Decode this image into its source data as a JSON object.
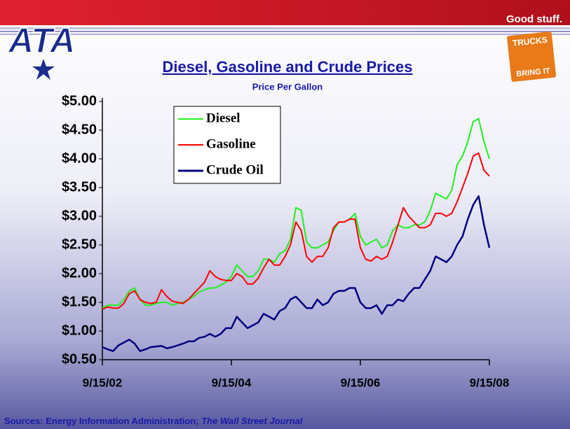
{
  "branding": {
    "logo": "ATA",
    "tagline": "Good stuff.",
    "badge": [
      "TRUCKS",
      "BRING IT"
    ]
  },
  "chart_data": {
    "type": "line",
    "title": "Diesel, Gasoline and Crude Prices",
    "subtitle": "Price Per Gallon",
    "source": [
      "Sources: Energy Information Administration; ",
      "The Wall Street Journal"
    ],
    "categories": [
      "9/15/02",
      null,
      null,
      null,
      null,
      null,
      null,
      null,
      null,
      null,
      null,
      null,
      null,
      null,
      null,
      null,
      null,
      null,
      null,
      null,
      null,
      null,
      null,
      null,
      "9/15/04",
      null,
      null,
      null,
      null,
      null,
      null,
      null,
      null,
      null,
      null,
      null,
      null,
      null,
      null,
      null,
      null,
      null,
      null,
      null,
      null,
      null,
      null,
      null,
      "9/15/06",
      null,
      null,
      null,
      null,
      null,
      null,
      null,
      null,
      null,
      null,
      null,
      null,
      null,
      null,
      null,
      null,
      null,
      null,
      null,
      null,
      null,
      null,
      null,
      "9/15/08"
    ],
    "xticks": [
      "9/15/02",
      "9/15/04",
      "9/15/06",
      "9/15/08"
    ],
    "ylim": [
      0.5,
      5
    ],
    "yticks": [
      {
        "value": 0.5,
        "label": "$0.50"
      },
      {
        "value": 1,
        "label": "$1.00"
      },
      {
        "value": 1.5,
        "label": "$1.50"
      },
      {
        "value": 2,
        "label": "$2.00"
      },
      {
        "value": 2.5,
        "label": "$2.50"
      },
      {
        "value": 3,
        "label": "$3.00"
      },
      {
        "value": 3.5,
        "label": "$3.50"
      },
      {
        "value": 4,
        "label": "$4.00"
      },
      {
        "value": 4.5,
        "label": "$4.50"
      },
      {
        "value": 5,
        "label": "$5.00"
      }
    ],
    "grid": false,
    "legend": "top-left",
    "series": [
      {
        "name": "Diesel",
        "color": "#22ee22",
        "values": [
          1.4,
          1.45,
          1.45,
          1.45,
          1.55,
          1.7,
          1.75,
          1.55,
          1.45,
          1.45,
          1.48,
          1.5,
          1.5,
          1.45,
          1.48,
          1.5,
          1.55,
          1.6,
          1.68,
          1.72,
          1.75,
          1.75,
          1.8,
          1.85,
          1.95,
          2.15,
          2.05,
          1.95,
          1.95,
          2.05,
          2.25,
          2.25,
          2.2,
          2.35,
          2.4,
          2.6,
          3.15,
          3.1,
          2.55,
          2.45,
          2.45,
          2.5,
          2.55,
          2.75,
          2.9,
          2.9,
          2.95,
          3.05,
          2.65,
          2.5,
          2.55,
          2.6,
          2.45,
          2.5,
          2.75,
          2.85,
          2.8,
          2.8,
          2.85,
          2.85,
          2.9,
          3.1,
          3.4,
          3.35,
          3.3,
          3.45,
          3.9,
          4.05,
          4.3,
          4.65,
          4.7,
          4.3,
          4.0
        ]
      },
      {
        "name": "Gasoline",
        "color": "#ff0000",
        "values": [
          1.38,
          1.42,
          1.4,
          1.4,
          1.48,
          1.65,
          1.7,
          1.55,
          1.5,
          1.48,
          1.5,
          1.72,
          1.6,
          1.52,
          1.5,
          1.48,
          1.55,
          1.65,
          1.75,
          1.85,
          2.05,
          1.95,
          1.9,
          1.88,
          1.88,
          2.0,
          1.95,
          1.82,
          1.82,
          1.92,
          2.1,
          2.25,
          2.15,
          2.15,
          2.3,
          2.5,
          2.9,
          2.75,
          2.3,
          2.2,
          2.3,
          2.3,
          2.45,
          2.8,
          2.9,
          2.9,
          2.95,
          2.95,
          2.45,
          2.25,
          2.22,
          2.3,
          2.25,
          2.3,
          2.55,
          2.85,
          3.15,
          3.0,
          2.9,
          2.8,
          2.8,
          2.85,
          3.05,
          3.05,
          3.0,
          3.05,
          3.25,
          3.5,
          3.75,
          4.05,
          4.1,
          3.8,
          3.7
        ]
      },
      {
        "name": "Crude Oil",
        "color": "#000080",
        "values": [
          0.72,
          0.68,
          0.65,
          0.75,
          0.8,
          0.85,
          0.78,
          0.65,
          0.68,
          0.72,
          0.73,
          0.74,
          0.7,
          0.72,
          0.75,
          0.78,
          0.82,
          0.82,
          0.88,
          0.9,
          0.95,
          0.9,
          0.95,
          1.05,
          1.05,
          1.25,
          1.15,
          1.05,
          1.1,
          1.15,
          1.3,
          1.25,
          1.2,
          1.35,
          1.4,
          1.55,
          1.6,
          1.5,
          1.4,
          1.4,
          1.55,
          1.45,
          1.5,
          1.65,
          1.7,
          1.7,
          1.75,
          1.75,
          1.5,
          1.4,
          1.4,
          1.45,
          1.3,
          1.45,
          1.45,
          1.55,
          1.52,
          1.65,
          1.75,
          1.75,
          1.9,
          2.05,
          2.3,
          2.25,
          2.2,
          2.3,
          2.5,
          2.65,
          2.95,
          3.2,
          3.35,
          2.85,
          2.45
        ]
      }
    ]
  }
}
